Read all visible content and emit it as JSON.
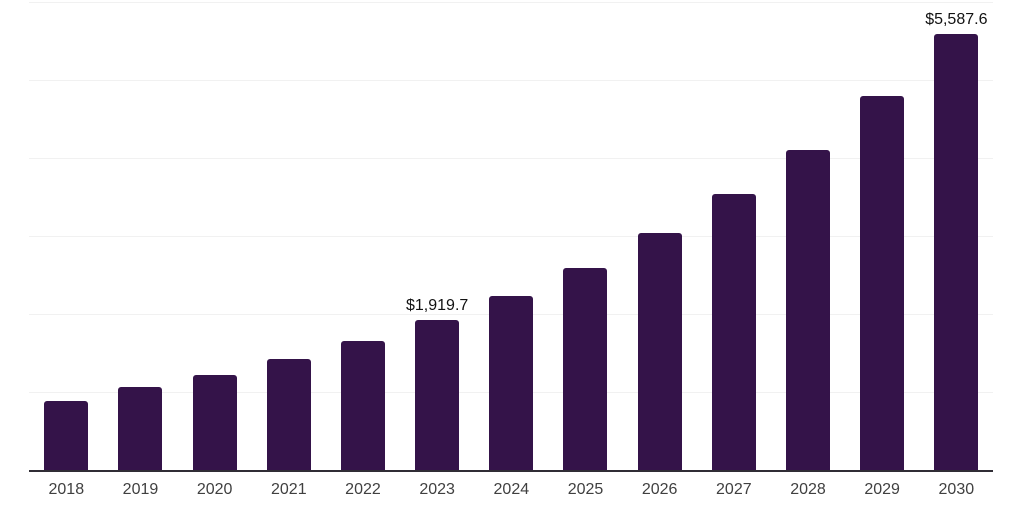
{
  "chart_data": {
    "type": "bar",
    "title": "",
    "xlabel": "",
    "ylabel": "",
    "categories": [
      "2018",
      "2019",
      "2020",
      "2021",
      "2022",
      "2023",
      "2024",
      "2025",
      "2026",
      "2027",
      "2028",
      "2029",
      "2030"
    ],
    "values": [
      885,
      1065,
      1215,
      1420,
      1650,
      1919.7,
      2230,
      2595,
      3035,
      3535,
      4105,
      4800,
      5587.6
    ],
    "value_labels": [
      "",
      "",
      "",
      "",
      "",
      "$1,919.7",
      "",
      "",
      "",
      "",
      "",
      "",
      "$5,587.6"
    ],
    "ylim": [
      0,
      6000
    ],
    "gridline_step": 1000,
    "grid": true,
    "legend": "none",
    "y_axis_labels_visible": false,
    "bar_color": "#341349",
    "gridline_color": "#f1f1f1",
    "axis_line_color": "#302d35",
    "value_label_color": "#121212",
    "tick_label_color": "#404040"
  }
}
